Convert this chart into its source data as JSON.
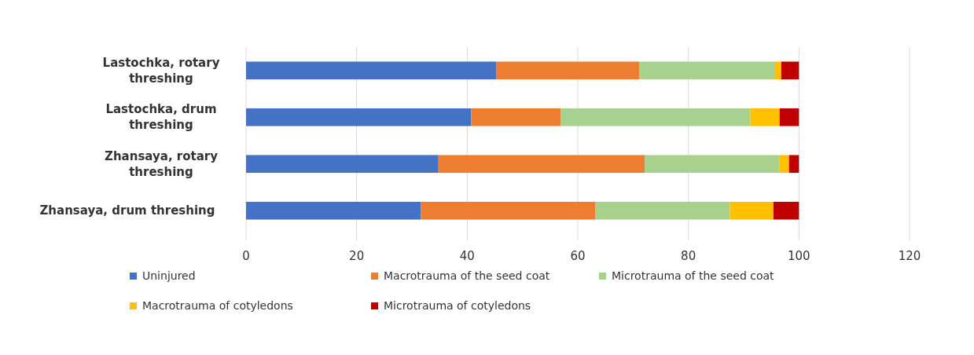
{
  "chart_data": {
    "type": "bar",
    "orientation": "horizontal",
    "stacked": true,
    "categories": [
      "Lastochka, rotary threshing",
      "Lastochka, drum threshing",
      "Zhansaya, rotary threshing",
      "Zhansaya, drum threshing"
    ],
    "series": [
      {
        "name": "Uninjured",
        "color": "#4472c4",
        "values": [
          45.3,
          40.7,
          34.8,
          31.6
        ]
      },
      {
        "name": "Macrotrauma of the seed coat",
        "color": "#ed7d31",
        "values": [
          25.8,
          16.2,
          37.3,
          31.6
        ]
      },
      {
        "name": "Microtrauma of the seed coat",
        "color": "#a9d18e",
        "values": [
          24.6,
          34.3,
          24.4,
          24.3
        ]
      },
      {
        "name": "Macrotrauma of cotyledons",
        "color": "#ffc000",
        "values": [
          1.1,
          5.3,
          1.7,
          7.9
        ]
      },
      {
        "name": "Microtrauma of cotyledons",
        "color": "#c00000",
        "values": [
          3.2,
          3.5,
          1.8,
          4.6
        ]
      }
    ],
    "xlim": [
      0,
      120
    ],
    "xticks": [
      0,
      20,
      40,
      60,
      80,
      100,
      120
    ],
    "grid": "x",
    "legend": "bottom"
  }
}
